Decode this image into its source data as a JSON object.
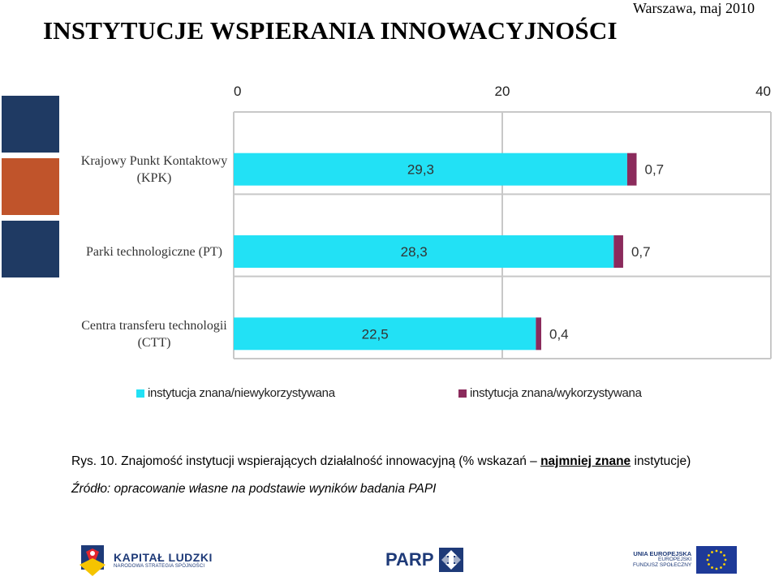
{
  "header": {
    "date": "Warszawa, maj 2010",
    "title": "INSTYTUCJE WSPIERANIA INNOWACYJNOŚCI"
  },
  "colors": {
    "side_blocks": [
      "#1f3a63",
      "#c0542b",
      "#1f3a63"
    ],
    "series": [
      "#22e1f5",
      "#8b2b5c"
    ],
    "grid": "#c8c8c8"
  },
  "chart_data": {
    "type": "bar",
    "orientation": "horizontal",
    "stacked": true,
    "categories": [
      [
        "Krajowy Punkt Kontaktowy",
        "(KPK)"
      ],
      [
        "Parki technologiczne (PT)"
      ],
      [
        "Centra transferu technologii",
        "(CTT)"
      ]
    ],
    "series": [
      {
        "name": "instytucja znana/niewykorzystywana",
        "values": [
          29.3,
          28.3,
          22.5
        ],
        "labels": [
          "29,3",
          "28,3",
          "22,5"
        ]
      },
      {
        "name": "instytucja znana/wykorzystywana",
        "values": [
          0.7,
          0.7,
          0.4
        ],
        "labels": [
          "0,7",
          "0,7",
          "0,4"
        ]
      }
    ],
    "xticks": [
      0,
      20,
      40
    ],
    "xlim": [
      0,
      40
    ],
    "grid": true,
    "legend_position": "bottom"
  },
  "caption": {
    "prefix": "Rys. 10. Znajomość instytucji wspierających działalność innowacyjną (% wskazań – ",
    "emphasis": "najmniej znane",
    "suffix": " instytucje)",
    "source": "Źródło: opracowanie własne na podstawie wyników badania PAPI"
  },
  "footer": {
    "kl_title": "KAPITAŁ LUDZKI",
    "kl_subtitle": "NARODOWA STRATEGIA SPÓJNOŚCI",
    "parp": "PARP",
    "ue_line1": "UNIA EUROPEJSKA",
    "ue_line2": "EUROPEJSKI",
    "ue_line3": "FUNDUSZ SPOŁECZNY"
  }
}
